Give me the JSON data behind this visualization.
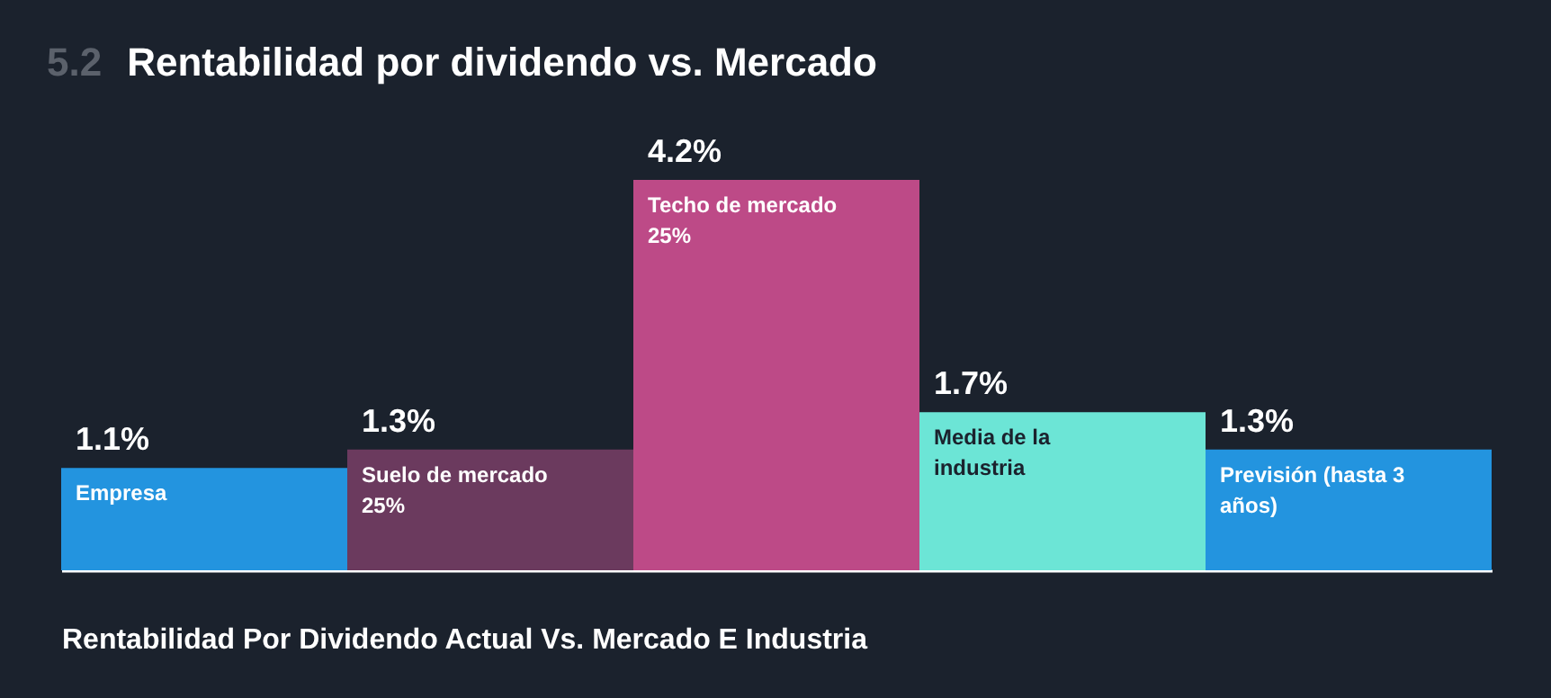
{
  "chart_data": {
    "type": "bar",
    "title": "Rentabilidad por dividendo vs. Mercado",
    "annotations": [
      "5.2"
    ],
    "xlabel": "Rentabilidad Por Dividendo Actual Vs. Mercado E Industria",
    "categories": [
      "Empresa",
      "Suelo de mercado 25%",
      "Techo de mercado 25%",
      "Media de la industria",
      "Previsión (hasta 3 años)"
    ],
    "values": [
      1.1,
      1.3,
      4.2,
      1.7,
      1.3
    ],
    "colors": [
      "#2394df",
      "#6b3a5e",
      "#bd4a87",
      "#6ce5d6",
      "#2394df"
    ],
    "value_labels": [
      "1.1%",
      "1.3%",
      "4.2%",
      "1.7%",
      "1.3%"
    ],
    "grid": false
  }
}
